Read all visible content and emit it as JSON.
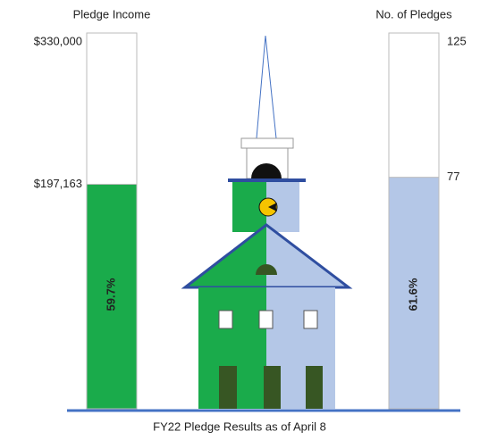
{
  "chart_data": [
    {
      "type": "thermometer",
      "title": "Pledge Income",
      "ylim": [
        0,
        330000
      ],
      "yticks": [
        {
          "value": 330000,
          "label": "$330,000"
        }
      ],
      "values": [
        197163
      ],
      "value_labels": [
        "$197,163"
      ],
      "color": "#1aab4b",
      "percent": {
        "value": 59.7,
        "label": "59.7%"
      }
    },
    {
      "type": "thermometer",
      "title": "No. of Pledges",
      "ylim": [
        0,
        125
      ],
      "yticks": [
        125
      ],
      "values": [
        77
      ],
      "color": "#b4c7e7",
      "percent": {
        "value": 61.6,
        "label": "61.6%"
      }
    }
  ],
  "caption": "FY22 Pledge Results as of April 8"
}
